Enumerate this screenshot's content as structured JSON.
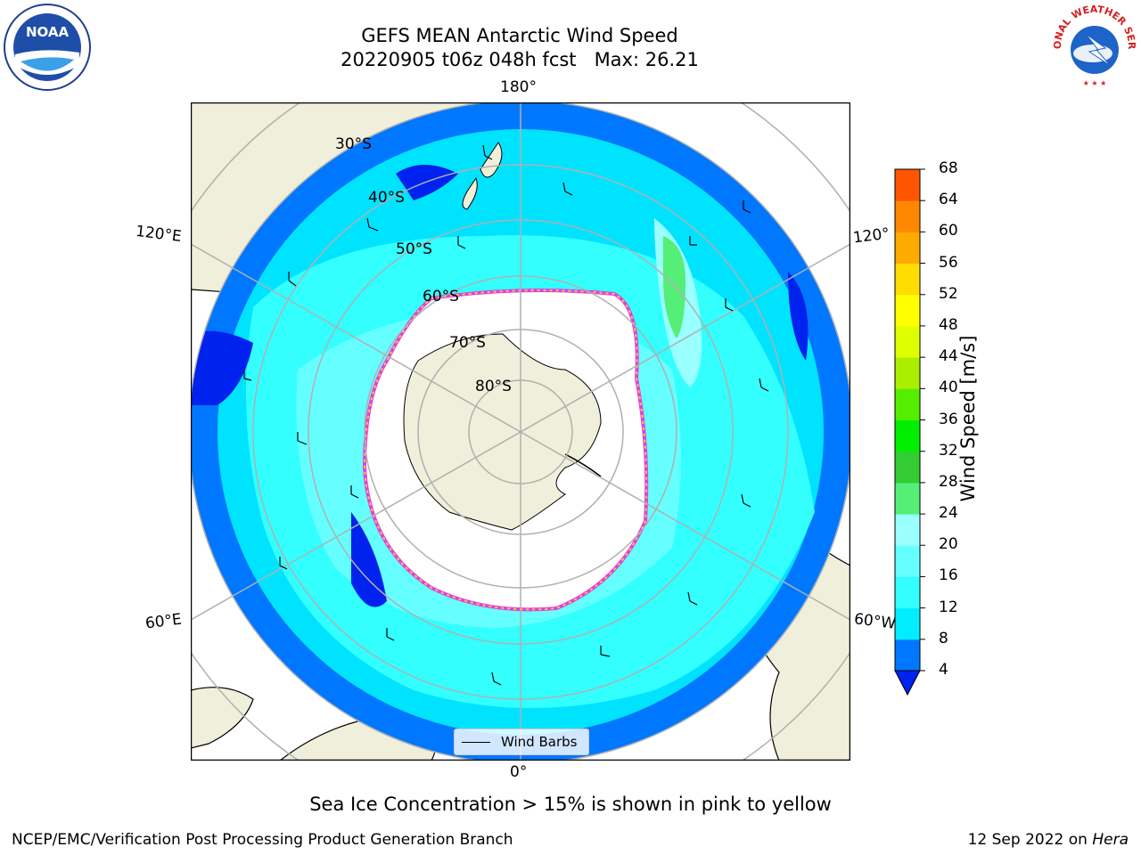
{
  "title": {
    "line1": "GEFS MEAN Antarctic Wind Speed",
    "line2": "20220905 t06z 048h fcst   Max: 26.21"
  },
  "map": {
    "projection": "south-polar-stereographic",
    "longitude_labels": {
      "top": "180°",
      "bottom": "0°",
      "left_upper": "120°E",
      "left_lower": "60°E",
      "right_upper": "120°",
      "right_lower": "60°W"
    },
    "latitude_labels": [
      "30°S",
      "40°S",
      "50°S",
      "60°S",
      "70°S",
      "80°S"
    ],
    "legend": {
      "label": "Wind Barbs"
    },
    "colors": {
      "land": "#efefdb",
      "coast": "#000000",
      "grid": "#b0b0b0",
      "sea_ice_low": "#f5c842",
      "sea_ice_high": "#e040e0"
    }
  },
  "colorbar": {
    "label": "Wind Speed [m/s]",
    "extend": "min",
    "ticks": [
      "4",
      "8",
      "12",
      "16",
      "20",
      "24",
      "28",
      "32",
      "36",
      "40",
      "44",
      "48",
      "52",
      "56",
      "60",
      "64",
      "68"
    ],
    "under_color": "#0022ee",
    "colors": [
      "#0077ff",
      "#00eeff",
      "#33ffff",
      "#66ffff",
      "#99ffff",
      "#55ee77",
      "#33cc33",
      "#00ee00",
      "#55ee00",
      "#aaee00",
      "#ddff00",
      "#ffff00",
      "#ffdd00",
      "#ffaa00",
      "#ff8800",
      "#ff5500",
      "#ff2200",
      "#ff0000"
    ]
  },
  "note": "Sea Ice Concentration > 15% is shown in pink to yellow",
  "footer": {
    "left": "NCEP/EMC/Verification Post Processing Product Generation Branch",
    "right_date": "12 Sep 2022 on ",
    "right_host": "Hera"
  },
  "logos": {
    "left": "NOAA",
    "right": "NATIONAL WEATHER SERVICE"
  }
}
